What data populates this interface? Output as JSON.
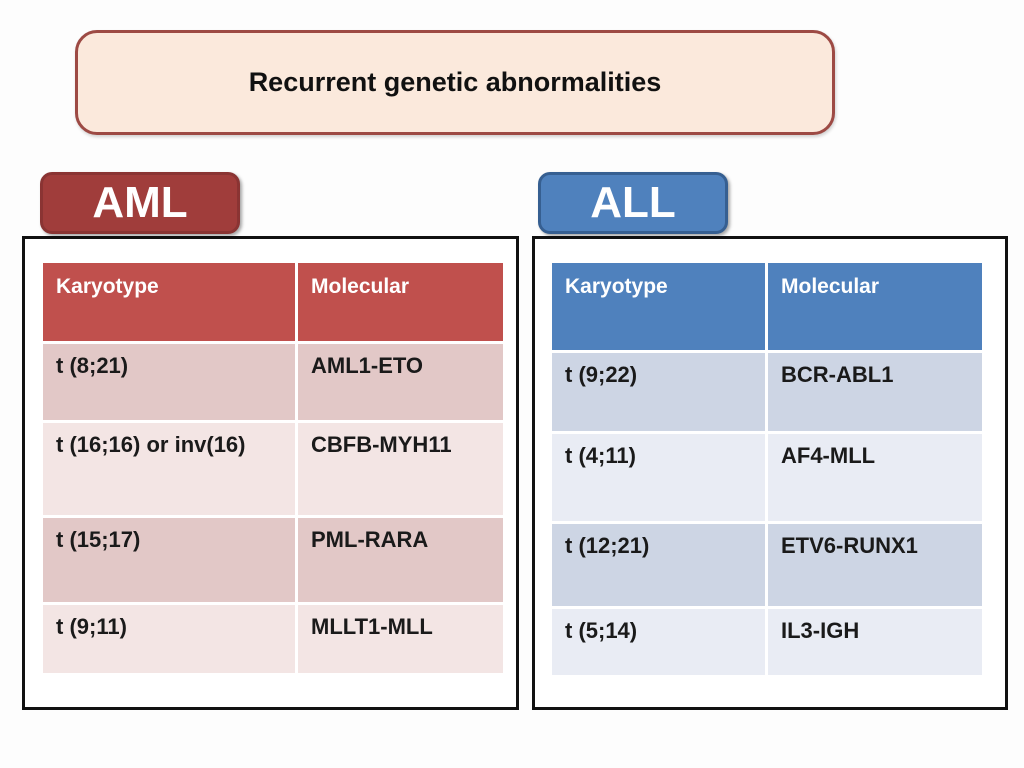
{
  "title": "Recurrent genetic abnormalities",
  "colors": {
    "title_bg": "#fbe9dc",
    "title_border": "#9d4a44",
    "aml_accent": "#a03d3b",
    "aml_accent_border": "#8a3433",
    "aml_header_bg": "#c0504d",
    "aml_row_dark": "#e2c8c7",
    "aml_row_light": "#f3e5e4",
    "all_accent": "#4f81bd",
    "all_accent_border": "#365f91",
    "all_header_bg": "#4f81bd",
    "all_row_dark": "#cdd5e4",
    "all_row_light": "#e9ecf4",
    "panel_border": "#111111"
  },
  "tables": [
    {
      "id": "aml",
      "label": "AML",
      "columns": [
        "Karyotype",
        "Molecular"
      ],
      "rows": [
        [
          "t (8;21)",
          "AML1-ETO"
        ],
        [
          "t (16;16) or inv(16)",
          "CBFB-MYH11"
        ],
        [
          "t (15;17)",
          "PML-RARA"
        ],
        [
          "t (9;11)",
          "MLLT1-MLL"
        ]
      ]
    },
    {
      "id": "all",
      "label": "ALL",
      "columns": [
        "Karyotype",
        "Molecular"
      ],
      "rows": [
        [
          "t (9;22)",
          "BCR-ABL1"
        ],
        [
          "t (4;11)",
          "AF4-MLL"
        ],
        [
          "t (12;21)",
          "ETV6-RUNX1"
        ],
        [
          "t (5;14)",
          "IL3-IGH"
        ]
      ]
    }
  ]
}
